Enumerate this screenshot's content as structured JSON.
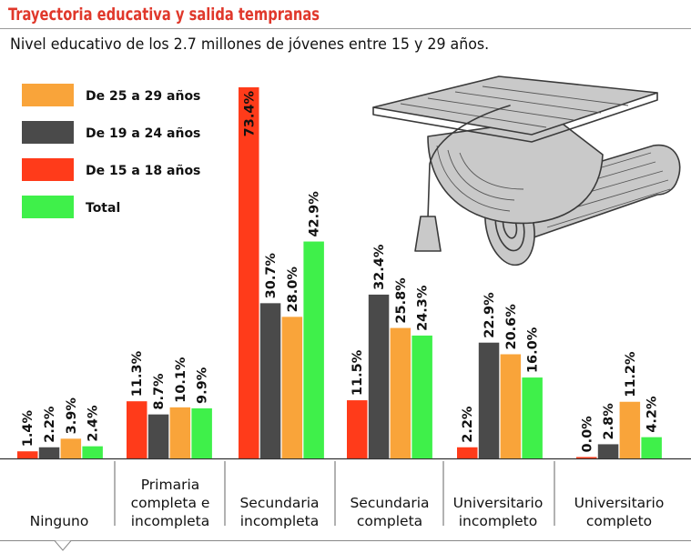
{
  "title": "Trayectoria educativa y salida tempranas",
  "subtitle": "Nivel educativo de los 2.7 millones de jóvenes entre 15 y 29 años.",
  "chart_data": {
    "type": "bar",
    "categories": [
      "Ninguno",
      "Primaria completa e incompleta",
      "Secundaria incompleta",
      "Secundaria completa",
      "Universitario incompleto",
      "Universitario completo"
    ],
    "category_lines": [
      [
        "Ninguno"
      ],
      [
        "Primaria",
        "completa e",
        "incompleta"
      ],
      [
        "Secundaria",
        "incompleta"
      ],
      [
        "Secundaria",
        "completa"
      ],
      [
        "Universitario",
        "incompleto"
      ],
      [
        "Universitario",
        "completo"
      ]
    ],
    "series": [
      {
        "name": "De 15 a 18 años",
        "color": "#ff3b1a",
        "values": [
          1.4,
          11.3,
          73.4,
          11.5,
          2.2,
          0.0
        ]
      },
      {
        "name": "De 19 a 24 años",
        "color": "#4a4a4a",
        "values": [
          2.2,
          8.7,
          30.7,
          32.4,
          22.9,
          2.8
        ]
      },
      {
        "name": "De 25 a 29 años",
        "color": "#f9a43a",
        "values": [
          3.9,
          10.1,
          28.0,
          25.8,
          20.6,
          11.2
        ]
      },
      {
        "name": "Total",
        "color": "#3ff04a",
        "values": [
          2.4,
          9.9,
          42.9,
          24.3,
          16.0,
          4.2
        ]
      }
    ],
    "value_labels": [
      [
        "1.4%",
        "11.3%",
        "73.4%",
        "11.5%",
        "2.2%",
        "0.0%"
      ],
      [
        "2.2%",
        "8.7%",
        "30.7%",
        "32.4%",
        "22.9%",
        "2.8%"
      ],
      [
        "3.9%",
        "10.1%",
        "28.0%",
        "25.8%",
        "20.6%",
        "11.2%"
      ],
      [
        "2.4%",
        "9.9%",
        "42.9%",
        "24.3%",
        "16.0%",
        "4.2%"
      ]
    ],
    "legend_order": [
      2,
      1,
      0,
      3
    ],
    "legend_position": "top-left",
    "ylim": [
      0,
      75
    ],
    "grid": false,
    "xlabel": "",
    "ylabel": ""
  },
  "illustration": {
    "icon": "graduation-cap-and-diploma-icon"
  }
}
